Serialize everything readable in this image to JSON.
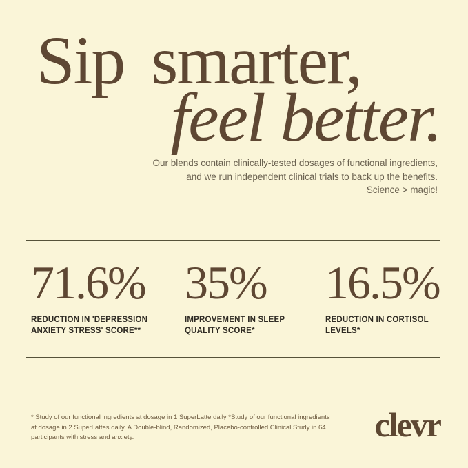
{
  "colors": {
    "background": "#FAF5D8",
    "heading": "#5E4733",
    "stat_value": "#5E4733",
    "stat_label": "#2E2A23",
    "subheadline": "#6A6150",
    "divider": "#55523A",
    "footnote": "#6D5B40",
    "logo": "#5D4732"
  },
  "headline": {
    "line1": "Sip smarter,",
    "line2": "feel better."
  },
  "subheadline": {
    "lines": [
      "Our blends contain clinically-tested dosages of functional ingredients,",
      "and we run independent clinical trials to back up the benefits.",
      "Science > magic!"
    ]
  },
  "stats": [
    {
      "value": "71.6%",
      "label": "REDUCTION IN 'DEPRESSION ANXIETY STRESS' SCORE**"
    },
    {
      "value": "35%",
      "label": "IMPROVEMENT IN SLEEP QUALITY SCORE*"
    },
    {
      "value": "16.5%",
      "label": "REDUCTION IN CORTISOL LEVELS*"
    }
  ],
  "footnote": {
    "lines": [
      "* Study of our functional ingredients at dosage in 1 SuperLatte daily *Study of our functional ingredients",
      "at dosage in 2 SuperLattes daily. A Double-blind, Randomized, Placebo-controlled Clinical Study in 64",
      "participants with stress and anxiety."
    ]
  },
  "logo": {
    "text": "clevr"
  }
}
